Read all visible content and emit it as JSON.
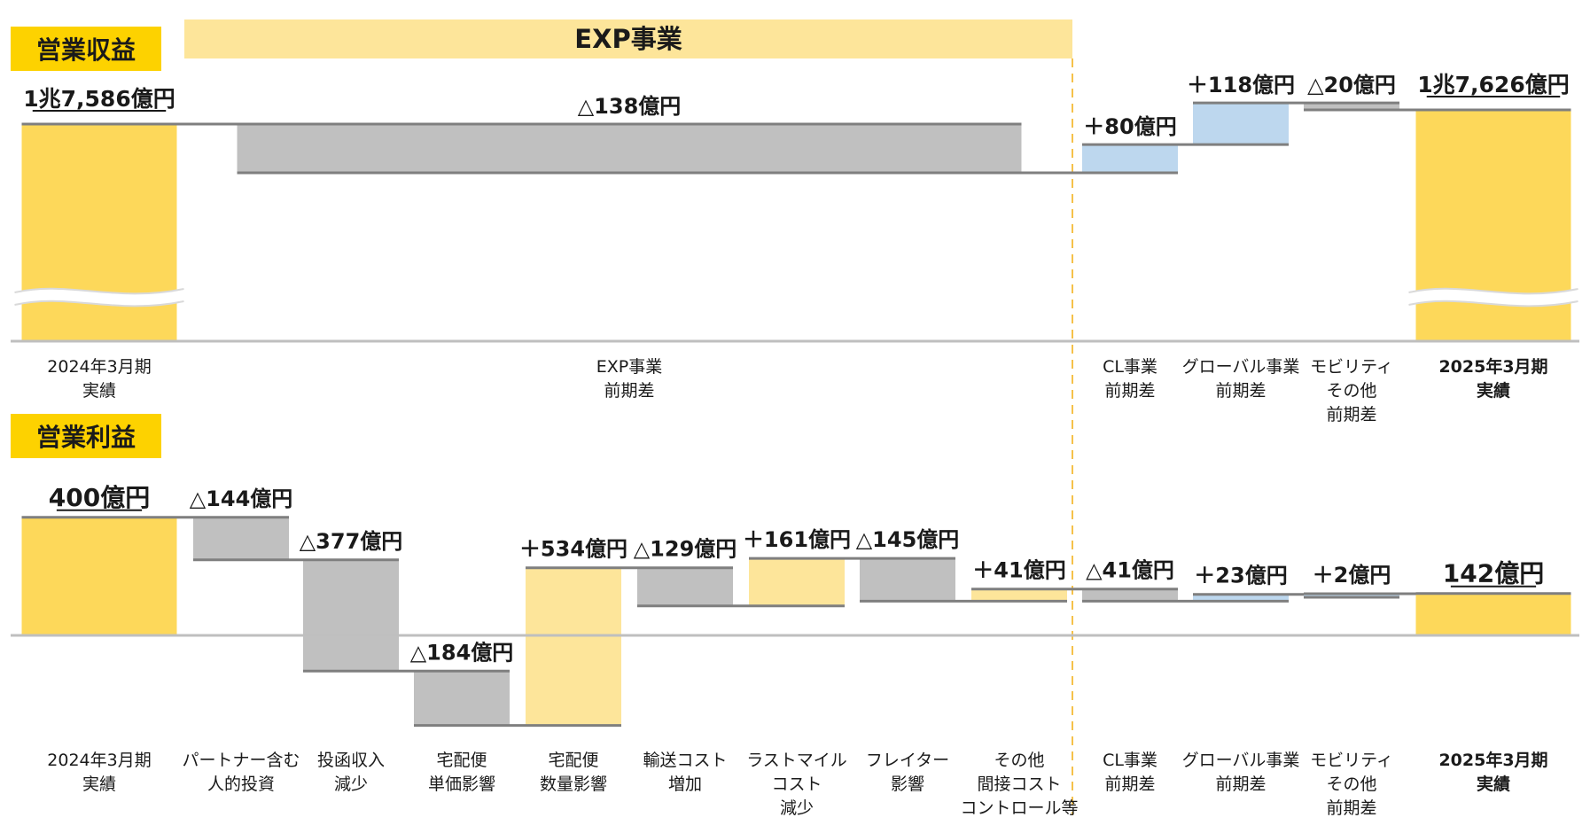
{
  "colors": {
    "base": "#fdd85a",
    "up_exp": "#fde59a",
    "up_other": "#bdd7ee",
    "down": "#c0c0c0",
    "connector": "#7f7f7f",
    "axis": "#bfbfbf",
    "banner": "#fde59a",
    "title_bg": "#fdd200",
    "divider": "#f5c14a"
  },
  "sections": {
    "revenue_title": "営業収益",
    "profit_title": "営業利益",
    "exp_banner": "EXP事業"
  },
  "chart_data": [
    {
      "type": "waterfall",
      "title": "営業収益",
      "unit": "億円",
      "axis_break": true,
      "ylim": [
        17300,
        17650
      ],
      "categories": [
        "2024年3月期\n実績",
        "EXP事業\n前期差",
        "CL事業\n前期差",
        "グローバル事業\n前期差",
        "モビリティ\nその他\n前期差",
        "2025年3月期\n実績"
      ],
      "bold_categories": [
        5
      ],
      "kinds": [
        "total",
        "delta",
        "delta",
        "delta",
        "delta",
        "total"
      ],
      "groups": [
        "base",
        "exp",
        "other",
        "other",
        "other",
        "base"
      ],
      "values": [
        17586,
        -138,
        80,
        118,
        -20,
        17626
      ],
      "labels": [
        "1兆7,586億円",
        "△138億円",
        "＋80億円",
        "＋118億円",
        "△20億円",
        "1兆7,626億円"
      ]
    },
    {
      "type": "waterfall",
      "title": "営業利益",
      "unit": "億円",
      "ylim": [
        -220,
        480
      ],
      "categories": [
        "2024年3月期\n実績",
        "パートナー含む\n人的投資",
        "投函収入\n減少",
        "宅配便\n単価影響",
        "宅配便\n数量影響",
        "輸送コスト\n増加",
        "ラストマイル\nコスト\n減少",
        "フレイター\n影響",
        "その他\n間接コスト\nコントロール等",
        "CL事業\n前期差",
        "グローバル事業\n前期差",
        "モビリティ\nその他\n前期差",
        "2025年3月期\n実績"
      ],
      "bold_categories": [
        12
      ],
      "kinds": [
        "total",
        "delta",
        "delta",
        "delta",
        "delta",
        "delta",
        "delta",
        "delta",
        "delta",
        "delta",
        "delta",
        "delta",
        "total"
      ],
      "groups": [
        "base",
        "exp",
        "exp",
        "exp",
        "exp",
        "exp",
        "exp",
        "exp",
        "exp",
        "other",
        "other",
        "other",
        "base"
      ],
      "values": [
        400,
        -144,
        -377,
        -184,
        534,
        -129,
        161,
        -145,
        41,
        -41,
        23,
        2,
        142
      ],
      "labels": [
        "400億円",
        "△144億円",
        "△377億円",
        "△184億円",
        "＋534億円",
        "△129億円",
        "＋161億円",
        "△145億円",
        "＋41億円",
        "△41億円",
        "＋23億円",
        "＋2億円",
        "142億円"
      ]
    }
  ]
}
